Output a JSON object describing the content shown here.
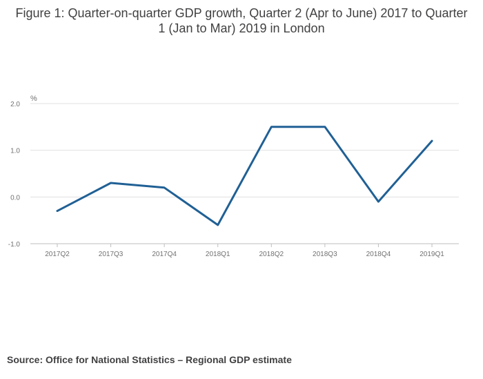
{
  "title": "Figure 1: Quarter-on-quarter GDP growth, Quarter 2 (Apr to June) 2017 to Quarter 1 (Jan to Mar) 2019 in London",
  "source": "Source: Office for National Statistics – Regional GDP estimate",
  "colors": {
    "line": "#206095",
    "grid": "#e0e0e0",
    "axis": "#bebebe"
  },
  "chart_data": {
    "type": "line",
    "title": "Figure 1: Quarter-on-quarter GDP growth, Quarter 2 (Apr to June) 2017 to Quarter 1 (Jan to Mar) 2019 in London",
    "ylabel": "%",
    "xlabel": "",
    "categories": [
      "2017Q2",
      "2017Q3",
      "2017Q4",
      "2018Q1",
      "2018Q2",
      "2018Q3",
      "2018Q4",
      "2019Q1"
    ],
    "series": [
      {
        "values": [
          -0.3,
          0.3,
          0.2,
          -0.6,
          1.5,
          1.5,
          -0.1,
          1.2
        ]
      }
    ],
    "ylim": [
      -1.0,
      2.0
    ],
    "yticks": [
      "2.0",
      "1.0",
      "0.0",
      "-1.0"
    ],
    "grid": true,
    "legend": "none"
  }
}
